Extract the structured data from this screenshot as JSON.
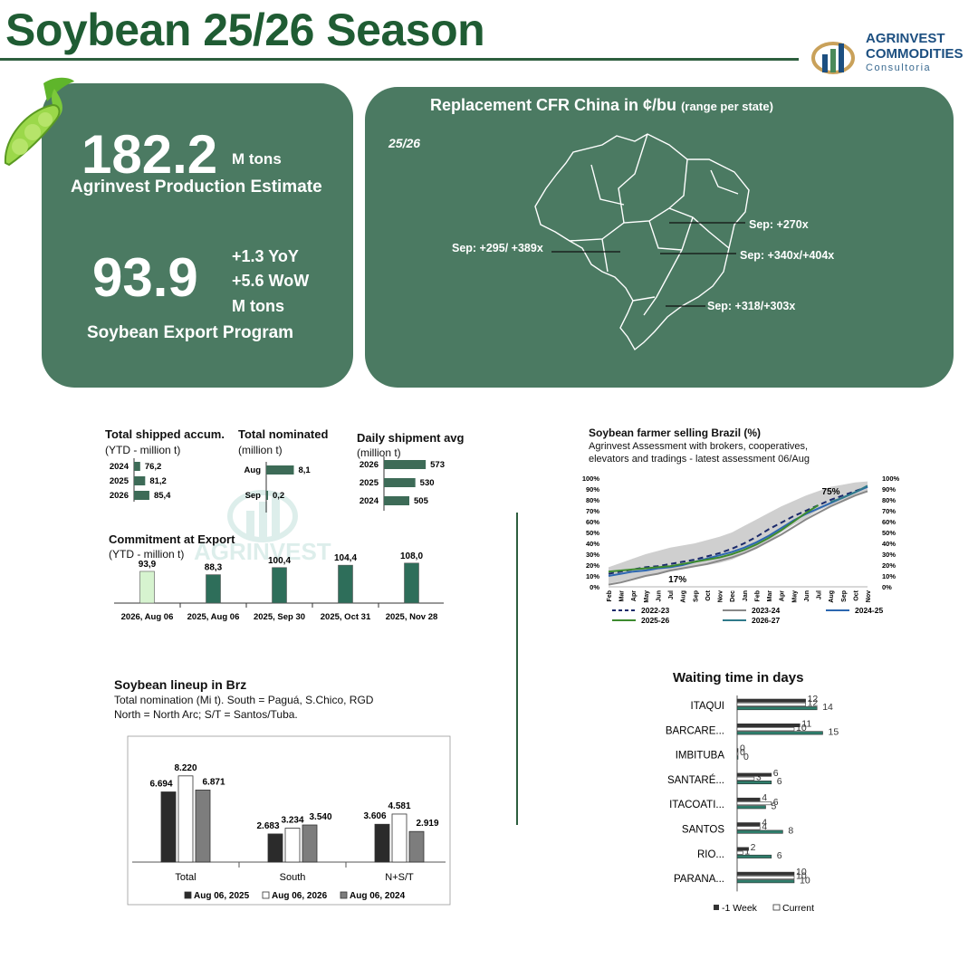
{
  "header": {
    "title": "Soybean 25/26 Season"
  },
  "logo": {
    "line1": "AGRINVEST",
    "line2": "COMMODITIES",
    "line3": "Consultoria"
  },
  "production": {
    "value": "182.2",
    "unit": "M tons",
    "label": "Agrinvest Production Estimate"
  },
  "exports": {
    "value": "93.9",
    "yoy": "+1.3 YoY",
    "wow": "+5.6 WoW",
    "unit": "M tons",
    "label": "Soybean Export Program"
  },
  "map": {
    "title": "Replacement CFR China in ¢/bu",
    "title_note": "(range per state)",
    "season": "25/26",
    "labels": [
      "Sep: +270x",
      "Sep: +295/ +389x",
      "Sep: +340x/+404x",
      "Sep: +318/+303x"
    ]
  },
  "shipped": {
    "title": "Total shipped accum.",
    "subtitle": "(YTD - million t)",
    "chart_data": {
      "type": "bar",
      "categories": [
        "2024",
        "2025",
        "2026"
      ],
      "values": [
        76.2,
        81.2,
        85.4
      ],
      "labels": [
        "76,2",
        "81,2",
        "85,4"
      ]
    }
  },
  "nominated": {
    "title": "Total nominated",
    "subtitle": "(million t)",
    "chart_data": {
      "type": "bar",
      "categories": [
        "Aug",
        "Sep"
      ],
      "values": [
        8.1,
        0.2
      ],
      "labels": [
        "8,1",
        "0,2"
      ]
    }
  },
  "daily": {
    "title": "Daily shipment avg",
    "subtitle": "(million t)",
    "chart_data": {
      "type": "bar",
      "categories": [
        "2026",
        "2025",
        "2024"
      ],
      "values": [
        573,
        530,
        505
      ],
      "labels": [
        "573",
        "530",
        "505"
      ]
    }
  },
  "commitment": {
    "title": "Commitment at Export",
    "subtitle": "(YTD - million t)",
    "chart_data": {
      "type": "bar",
      "categories": [
        "2026,  Aug 06",
        "2025,  Aug 06",
        "2025, Sep 30",
        "2025, Oct 31",
        "2025, Nov 28"
      ],
      "values": [
        93.9,
        88.3,
        100.4,
        104.4,
        108.0
      ],
      "labels": [
        "93,9",
        "88,3",
        "100,4",
        "104,4",
        "108,0"
      ],
      "colors": [
        "#d6f3cf",
        "#2e6e5a",
        "#2e6e5a",
        "#2e6e5a",
        "#2e6e5a"
      ]
    }
  },
  "selling": {
    "title": "Soybean farmer selling Brazil (%)",
    "subtitle1": "Agrinvest Assessment with brokers, cooperatives,",
    "subtitle2": "elevators and tradings - latest assessment 06/Aug",
    "callout_low": "17%",
    "callout_high": "75%",
    "chart_data": {
      "type": "line",
      "x": [
        "Feb",
        "Mar",
        "Apr",
        "May",
        "Jun",
        "Jul",
        "Aug",
        "Sep",
        "Oct",
        "Nov",
        "Dec",
        "Jan",
        "Feb",
        "Mar",
        "Apr",
        "May",
        "Jun",
        "Jul",
        "Aug",
        "Sep",
        "Oct",
        "Nov"
      ],
      "yticks": [
        "0%",
        "10%",
        "20%",
        "30%",
        "40%",
        "50%",
        "60%",
        "70%",
        "80%",
        "90%",
        "100%"
      ],
      "ylim": [
        0,
        100
      ],
      "range_low": [
        3,
        5,
        8,
        10,
        12,
        14,
        16,
        18,
        20,
        22,
        25,
        30,
        35,
        42,
        50,
        57,
        63,
        70,
        75,
        80,
        84,
        87
      ],
      "range_high": [
        18,
        22,
        26,
        30,
        33,
        36,
        38,
        40,
        43,
        46,
        50,
        56,
        62,
        68,
        74,
        79,
        84,
        88,
        92,
        94,
        96,
        97
      ],
      "series": [
        {
          "name": "2022-23",
          "color": "#1b2a6b",
          "dash": "6,4",
          "values": [
            12,
            14,
            16,
            18,
            19,
            21,
            23,
            25,
            28,
            31,
            35,
            40,
            46,
            53,
            59,
            65,
            70,
            75,
            80,
            84,
            88,
            92
          ]
        },
        {
          "name": "2023-24",
          "color": "#888888",
          "dash": "",
          "values": [
            2,
            4,
            7,
            10,
            12,
            15,
            17,
            19,
            21,
            24,
            27,
            31,
            36,
            42,
            48,
            55,
            62,
            68,
            74,
            79,
            84,
            88
          ]
        },
        {
          "name": "2024-25",
          "color": "#2c67b0",
          "dash": "",
          "values": [
            10,
            12,
            14,
            15,
            17,
            18,
            20,
            23,
            26,
            29,
            32,
            36,
            41,
            47,
            54,
            61,
            67,
            72,
            77,
            82,
            87,
            92
          ]
        },
        {
          "name": "2025-26",
          "color": "#3d8b2f",
          "dash": "",
          "values": [
            14,
            15,
            16,
            17,
            18,
            19,
            21,
            23,
            25,
            27,
            30,
            34,
            39,
            45,
            52,
            60,
            68,
            75,
            null,
            null,
            null,
            null
          ]
        },
        {
          "name": "2026-27",
          "color": "#2f7a8a",
          "dash": "",
          "values": [
            null,
            null,
            null,
            null,
            null,
            null,
            null,
            null,
            null,
            null,
            null,
            null,
            null,
            null,
            null,
            null,
            null,
            null,
            78,
            82,
            87,
            93
          ]
        }
      ]
    }
  },
  "lineup": {
    "title": "Soybean lineup in Brz",
    "subtitle1": "Total nomination (Mi t). South = Paguá, S.Chico, RGD",
    "subtitle2": "North = North Arc; S/T = Santos/Tuba.",
    "chart_data": {
      "type": "bar",
      "categories": [
        "Total",
        "South",
        "N+S/T"
      ],
      "ylim": [
        0,
        9.5
      ],
      "series": [
        {
          "name": "Aug  06, 2025",
          "color": "#2b2b2b",
          "values": [
            6.694,
            2.683,
            3.606
          ],
          "labels": [
            "6.694",
            "2.683",
            "3.606"
          ]
        },
        {
          "name": "Aug  06, 2026",
          "color": "#ffffff",
          "values": [
            8.22,
            3.234,
            4.581
          ],
          "labels": [
            "8.220",
            "3.234",
            "4.581"
          ]
        },
        {
          "name": "Aug  06, 2024",
          "color": "#7d7d7d",
          "values": [
            6.871,
            3.54,
            2.919
          ],
          "labels": [
            "6.871",
            "3.540",
            "2.919"
          ]
        }
      ]
    }
  },
  "waiting": {
    "title": "Waiting time in days",
    "chart_data": {
      "type": "bar",
      "categories": [
        "ITAQUI",
        "BARCARE...",
        "IMBITUBA",
        "SANTARÉ...",
        "ITACOATI...",
        "SANTOS",
        "RIO...",
        "PARANA..."
      ],
      "series": [
        {
          "name": "-1 Week",
          "color": "#333333",
          "values": [
            12,
            11,
            0,
            6,
            4,
            4,
            2,
            10
          ]
        },
        {
          "name": "Current",
          "color": "#ffffff",
          "values": [
            12,
            10,
            0,
            3,
            6,
            4,
            1,
            10
          ]
        },
        {
          "name": "",
          "color": "#2e7d6b",
          "values": [
            14,
            15,
            0,
            6,
            5,
            8,
            6,
            10
          ]
        }
      ]
    }
  }
}
